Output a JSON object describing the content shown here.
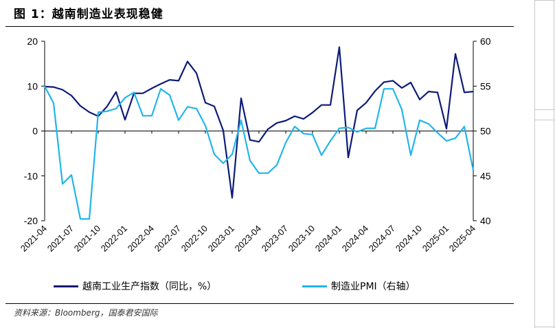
{
  "title": "图 1：越南制造业表现稳健",
  "source": "资料来源：Bloomberg，国泰君安国际",
  "colors": {
    "series_ip": "#0c1a78",
    "series_pmi": "#20b5ea",
    "axis": "#000000"
  },
  "chart_data": {
    "type": "line",
    "title": "越南制造业表现稳健",
    "x": [
      "2021-04",
      "2021-05",
      "2021-06",
      "2021-07",
      "2021-08",
      "2021-09",
      "2021-10",
      "2021-11",
      "2021-12",
      "2022-01",
      "2022-02",
      "2022-03",
      "2022-04",
      "2022-05",
      "2022-06",
      "2022-07",
      "2022-08",
      "2022-09",
      "2022-10",
      "2022-11",
      "2022-12",
      "2023-01",
      "2023-02",
      "2023-03",
      "2023-04",
      "2023-05",
      "2023-06",
      "2023-07",
      "2023-08",
      "2023-09",
      "2023-10",
      "2023-11",
      "2023-12",
      "2024-01",
      "2024-02",
      "2024-03",
      "2024-04",
      "2024-05",
      "2024-06",
      "2024-07",
      "2024-08",
      "2024-09",
      "2024-10",
      "2024-11",
      "2024-12",
      "2025-01",
      "2025-02",
      "2025-03",
      "2025-04"
    ],
    "x_tick_labels": [
      "2021-04",
      "2021-07",
      "2021-10",
      "2022-01",
      "2022-04",
      "2022-07",
      "2022-10",
      "2023-01",
      "2023-04",
      "2023-07",
      "2023-10",
      "2024-01",
      "2024-04",
      "2024-07",
      "2024-10",
      "2025-01",
      "2025-04"
    ],
    "left_axis": {
      "ylim": [
        -20,
        20
      ],
      "ticks": [
        "-20",
        "-10",
        "0",
        "10",
        "20"
      ]
    },
    "right_axis": {
      "ylim": [
        40,
        60
      ],
      "ticks": [
        "40",
        "45",
        "50",
        "55",
        "60"
      ]
    },
    "series": [
      {
        "name": "越南工业生产指数（同比，%）",
        "axis": "left",
        "values": [
          9.9,
          9.8,
          9.2,
          7.9,
          5.6,
          4.2,
          3.3,
          5.5,
          8.7,
          2.5,
          8.4,
          8.4,
          9.5,
          10.5,
          11.4,
          11.2,
          15.5,
          12.9,
          6.3,
          5.5,
          0.1,
          -14.9,
          7.3,
          -2.0,
          -2.4,
          0.4,
          1.8,
          2.3,
          3.3,
          2.7,
          4.1,
          5.8,
          5.8,
          18.7,
          -5.9,
          4.6,
          6.3,
          8.9,
          10.9,
          11.2,
          9.6,
          10.8,
          7.0,
          8.8,
          8.6,
          0.5,
          17.2,
          8.6,
          8.8
        ]
      },
      {
        "name": "制造业PMI（右轴）",
        "axis": "right",
        "values": [
          55.0,
          53.1,
          44.1,
          45.1,
          40.2,
          40.2,
          52.1,
          52.2,
          52.5,
          53.7,
          54.3,
          51.7,
          51.7,
          54.7,
          54.0,
          51.2,
          52.7,
          52.5,
          50.6,
          47.4,
          46.4,
          47.4,
          51.2,
          46.7,
          45.3,
          45.3,
          46.2,
          48.7,
          50.5,
          49.7,
          49.6,
          47.3,
          48.9,
          50.3,
          50.4,
          49.9,
          50.3,
          50.3,
          54.7,
          54.7,
          52.4,
          47.3,
          51.2,
          50.8,
          49.8,
          48.9,
          49.2,
          50.5,
          45.6
        ]
      }
    ]
  }
}
